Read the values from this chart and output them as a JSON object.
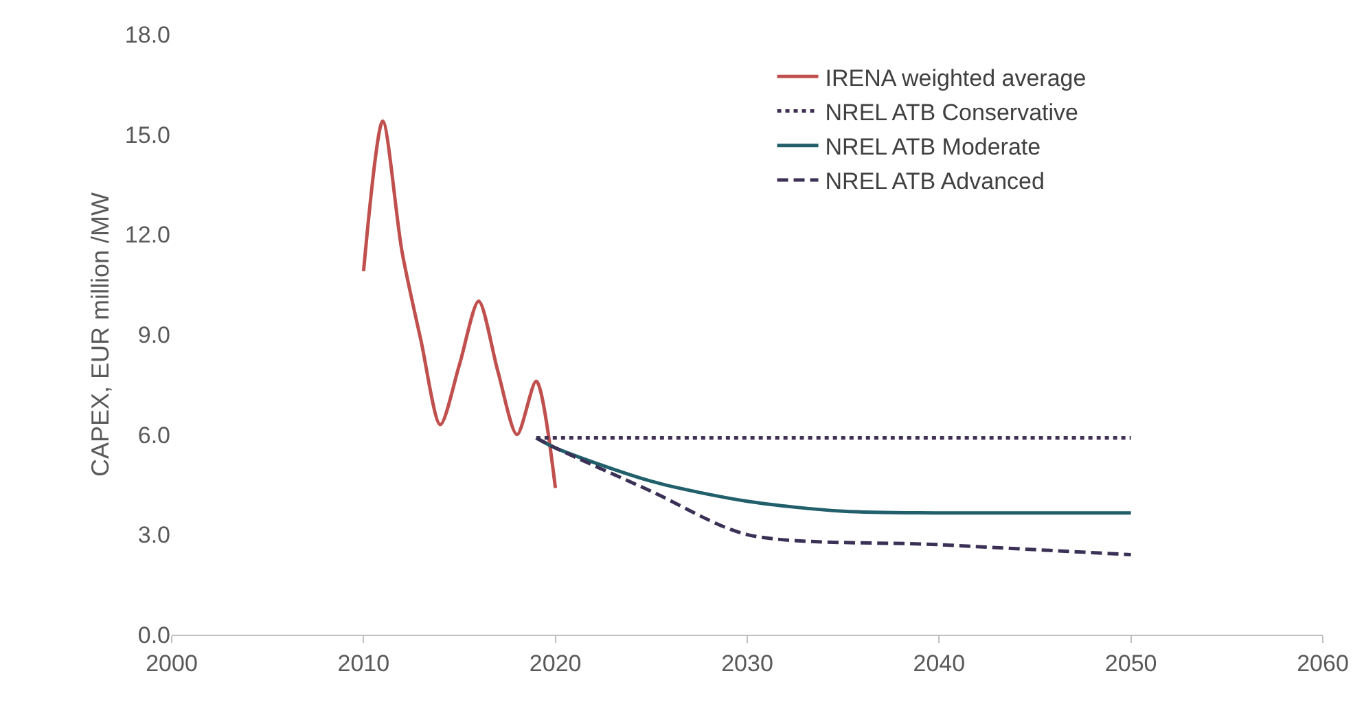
{
  "chart_data": {
    "type": "line",
    "ylabel": "CAPEX, EUR million /MW",
    "xlim": [
      2000,
      2060
    ],
    "xticks": [
      2000,
      2010,
      2020,
      2030,
      2040,
      2050,
      2060
    ],
    "ylim": [
      0,
      18
    ],
    "yticks": [
      {
        "value": 0,
        "label": "0.0"
      },
      {
        "value": 3,
        "label": "3.0"
      },
      {
        "value": 6,
        "label": "6.0"
      },
      {
        "value": 9,
        "label": "9.0"
      },
      {
        "value": 12,
        "label": "12.0"
      },
      {
        "value": 15,
        "label": "15.0"
      },
      {
        "value": 18,
        "label": "18.0"
      }
    ],
    "grid": false,
    "legend": "top right",
    "marker": "none",
    "series": [
      {
        "name": "IRENA weighted average",
        "color": "#c0504d",
        "line_style": "solid",
        "x": [
          2010,
          2011,
          2012,
          2013,
          2014,
          2015,
          2016,
          2017,
          2018,
          2019,
          2020
        ],
        "values": [
          10.9,
          15.4,
          11.5,
          8.8,
          6.3,
          8.1,
          10.0,
          7.9,
          6.0,
          7.6,
          4.4
        ]
      },
      {
        "name": "NREL ATB Conservative",
        "color": "#403152",
        "line_style": "dotted",
        "x": [
          2019,
          2030,
          2040,
          2050
        ],
        "values": [
          5.9,
          5.9,
          5.9,
          5.9
        ]
      },
      {
        "name": "NREL ATB Moderate",
        "color": "#215f6b",
        "line_style": "solid",
        "x": [
          2019,
          2020,
          2025,
          2030,
          2035,
          2040,
          2050
        ],
        "values": [
          5.9,
          5.6,
          4.6,
          4.0,
          3.7,
          3.65,
          3.65
        ]
      },
      {
        "name": "NREL ATB Advanced",
        "color": "#3b3156",
        "line_style": "dashed",
        "x": [
          2019,
          2020,
          2025,
          2030,
          2040,
          2050
        ],
        "values": [
          5.9,
          5.6,
          4.3,
          3.0,
          2.7,
          2.4
        ]
      }
    ]
  }
}
